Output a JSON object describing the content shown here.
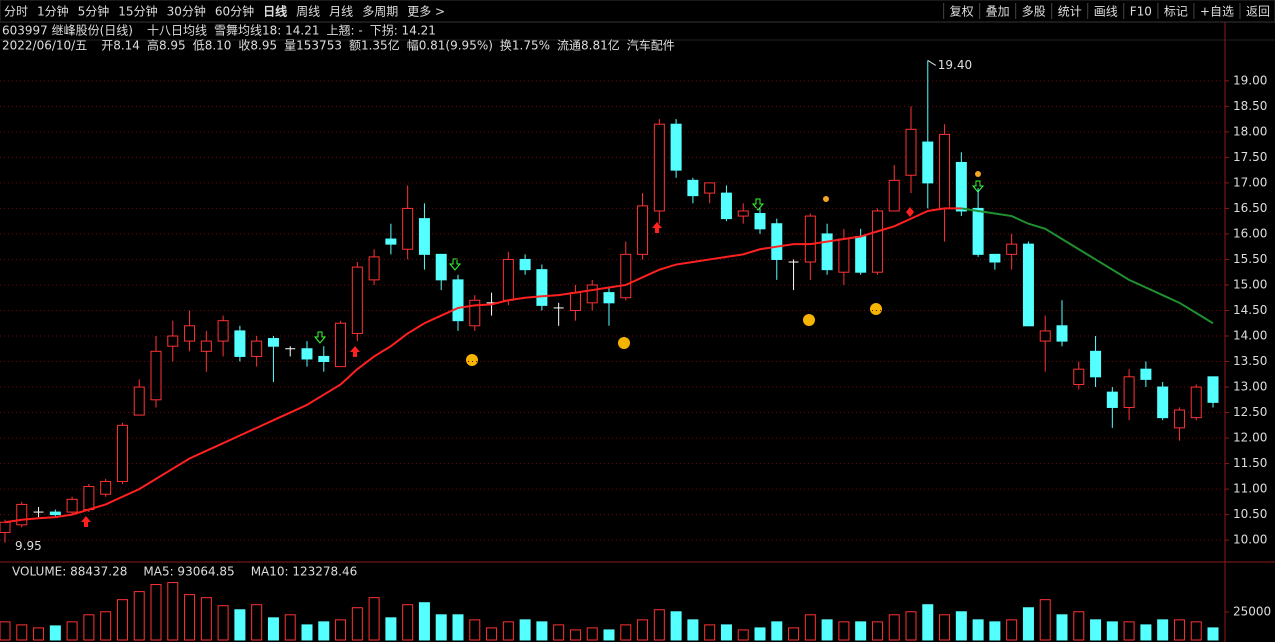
{
  "toolbar": {
    "periods": [
      "分时",
      "1分钟",
      "5分钟",
      "15分钟",
      "30分钟",
      "60分钟",
      "日线",
      "周线",
      "月线",
      "多周期",
      "更多 >"
    ],
    "active": 6,
    "tools": [
      "复权",
      "叠加",
      "多股",
      "统计",
      "画线",
      "F10",
      "标记",
      "+自选",
      "返回"
    ]
  },
  "info": {
    "stock": "603997 继峰股份(日线)",
    "indicator": "十八日均线",
    "ma_label": "雪舞均线18: 14.21",
    "up_label": "上翘: -",
    "down_label": "下拐: 14.21",
    "date": "2022/06/10/五",
    "open": "开8.14",
    "high": "高8.95",
    "low": "低8.10",
    "close": "收8.95",
    "volume": "量153753",
    "amount": "额1.35亿",
    "change": "幅0.81(9.95%)",
    "turnover": "换1.75%",
    "float": "流通8.81亿",
    "sector": "汽车配件"
  },
  "chart_data": {
    "type": "candlestick",
    "up_color": "#ff3232",
    "down_color": "#54ffff",
    "ylim": [
      9.65,
      19.8
    ],
    "yticks": [
      {
        "value": 10,
        "label": "10.00"
      },
      {
        "value": 10.5,
        "label": "10.50"
      },
      {
        "value": 11,
        "label": "11.00"
      },
      {
        "value": 11.5,
        "label": "11.50"
      },
      {
        "value": 12,
        "label": "12.00"
      },
      {
        "value": 12.5,
        "label": "12.50"
      },
      {
        "value": 13,
        "label": "13.00"
      },
      {
        "value": 13.5,
        "label": "13.50"
      },
      {
        "value": 14,
        "label": "14.00"
      },
      {
        "value": 14.5,
        "label": "14.50"
      },
      {
        "value": 15,
        "label": "15.00"
      },
      {
        "value": 15.5,
        "label": "15.50"
      },
      {
        "value": 16,
        "label": "16.00"
      },
      {
        "value": 16.5,
        "label": "16.50"
      },
      {
        "value": 17,
        "label": "17.00"
      },
      {
        "value": 17.5,
        "label": "17.50"
      },
      {
        "value": 18,
        "label": "18.00"
      },
      {
        "value": 18.5,
        "label": "18.50"
      },
      {
        "value": 19,
        "label": "19.00"
      }
    ],
    "grid": true,
    "open": [
      10.15,
      10.3,
      10.55,
      10.55,
      10.55,
      10.6,
      10.9,
      11.15,
      12.45,
      12.75,
      13.8,
      13.9,
      13.7,
      13.9,
      14.1,
      13.6,
      13.95,
      13.75,
      13.75,
      13.6,
      13.4,
      14.05,
      15.1,
      15.9,
      15.7,
      16.3,
      15.6,
      15.1,
      14.2,
      14.65,
      14.7,
      15.5,
      15.3,
      14.55,
      14.5,
      14.65,
      14.85,
      14.75,
      15.6,
      16.45,
      18.15,
      17.05,
      16.8,
      16.8,
      16.35,
      16.4,
      16.2,
      15.45,
      15.45,
      16.0,
      15.25,
      15.95,
      15.25,
      16.45,
      17.15,
      17.8,
      16.5,
      17.4,
      16.5,
      15.6,
      15.6,
      15.8,
      13.9,
      14.2,
      13.05,
      13.7,
      12.9,
      12.6,
      13.35,
      13.0,
      12.2,
      12.4,
      13.2
    ],
    "high": [
      10.4,
      10.75,
      10.65,
      10.6,
      10.85,
      11.1,
      11.2,
      12.3,
      13.15,
      14.0,
      14.3,
      14.5,
      14.1,
      14.4,
      14.2,
      14.0,
      14.0,
      13.8,
      13.9,
      13.8,
      14.3,
      15.45,
      15.7,
      16.2,
      16.95,
      16.6,
      15.6,
      15.2,
      14.8,
      14.85,
      15.65,
      15.6,
      15.4,
      14.65,
      15.0,
      15.1,
      14.95,
      15.85,
      16.8,
      18.25,
      18.25,
      17.1,
      17.0,
      16.95,
      16.6,
      16.5,
      16.3,
      15.5,
      16.4,
      16.2,
      16.1,
      16.1,
      16.5,
      17.35,
      18.5,
      19.4,
      18.15,
      17.6,
      16.9,
      15.6,
      16.0,
      15.85,
      14.4,
      14.7,
      13.5,
      14.0,
      13.0,
      13.35,
      13.5,
      13.1,
      12.6,
      13.05,
      13.2
    ],
    "low": [
      9.95,
      10.25,
      10.45,
      10.45,
      10.5,
      10.55,
      10.85,
      11.1,
      12.45,
      12.6,
      13.5,
      13.7,
      13.3,
      13.6,
      13.5,
      13.4,
      13.1,
      13.6,
      13.4,
      13.3,
      13.4,
      13.9,
      15.0,
      15.6,
      15.5,
      15.3,
      14.9,
      14.1,
      14.1,
      14.4,
      14.6,
      15.2,
      14.5,
      14.2,
      14.3,
      14.5,
      14.2,
      14.7,
      15.5,
      16.2,
      17.1,
      16.6,
      16.6,
      16.25,
      16.2,
      16.0,
      15.1,
      14.9,
      15.1,
      15.2,
      15.0,
      15.2,
      15.2,
      16.45,
      16.8,
      16.5,
      15.85,
      16.35,
      15.55,
      15.3,
      15.3,
      14.2,
      13.3,
      13.8,
      12.95,
      13.0,
      12.2,
      12.35,
      13.0,
      12.35,
      11.95,
      12.35,
      12.6
    ],
    "close": [
      10.35,
      10.7,
      10.55,
      10.5,
      10.8,
      11.05,
      11.15,
      12.25,
      13.0,
      13.7,
      14.0,
      14.2,
      13.9,
      14.3,
      13.6,
      13.9,
      13.8,
      13.75,
      13.55,
      13.5,
      14.25,
      15.35,
      15.55,
      15.8,
      16.5,
      15.6,
      15.1,
      14.3,
      14.7,
      14.65,
      15.5,
      15.3,
      14.6,
      14.55,
      14.85,
      15.0,
      14.65,
      15.6,
      16.55,
      18.15,
      17.25,
      16.75,
      17.0,
      16.3,
      16.45,
      16.1,
      15.5,
      15.45,
      16.35,
      15.3,
      15.9,
      15.25,
      16.45,
      17.05,
      18.05,
      17.0,
      17.95,
      16.45,
      15.6,
      15.45,
      15.8,
      14.2,
      14.1,
      13.9,
      13.35,
      13.2,
      12.6,
      13.2,
      13.15,
      12.4,
      12.55,
      13.0,
      12.7
    ],
    "ma_rising": {
      "color": "#ff2020",
      "values": [
        10.35,
        10.4,
        10.43,
        10.45,
        10.5,
        10.6,
        10.7,
        10.85,
        11.0,
        11.2,
        11.4,
        11.6,
        11.75,
        11.9,
        12.05,
        12.2,
        12.35,
        12.5,
        12.65,
        12.85,
        13.05,
        13.35,
        13.6,
        13.8,
        14.05,
        14.25,
        14.4,
        14.55,
        14.6,
        14.62,
        14.7,
        14.75,
        14.78,
        14.8,
        14.85,
        14.9,
        14.95,
        15.0,
        15.15,
        15.3,
        15.4,
        15.45,
        15.5,
        15.55,
        15.6,
        15.7,
        15.75,
        15.8,
        15.8,
        15.85,
        15.9,
        15.95,
        16.05,
        16.15,
        16.3,
        16.45,
        16.5,
        16.5,
        null,
        null,
        null,
        null,
        null,
        null,
        null,
        null,
        null,
        null,
        null,
        null,
        null,
        null,
        null
      ]
    },
    "ma_falling": {
      "color": "#1f8f2f",
      "values": [
        null,
        null,
        null,
        null,
        null,
        null,
        null,
        null,
        null,
        null,
        null,
        null,
        null,
        null,
        null,
        null,
        null,
        null,
        null,
        null,
        null,
        null,
        null,
        null,
        null,
        null,
        null,
        null,
        null,
        null,
        null,
        null,
        null,
        null,
        null,
        null,
        null,
        null,
        null,
        null,
        null,
        null,
        null,
        null,
        null,
        null,
        null,
        null,
        null,
        null,
        null,
        null,
        null,
        null,
        null,
        null,
        null,
        16.5,
        16.45,
        16.4,
        16.35,
        16.2,
        16.1,
        15.9,
        15.7,
        15.5,
        15.3,
        15.1,
        14.95,
        14.8,
        14.65,
        14.45,
        14.25
      ]
    },
    "max_label": "19.40",
    "min_label": "9.95",
    "volume": {
      "title": "VOLUME: 88437.28",
      "ma5": "MA5: 93064.85",
      "ma10": "MA10: 123278.46",
      "ylim": [
        0,
        50000
      ],
      "yticks": [
        25000
      ],
      "values": [
        16200,
        13500,
        10800,
        12600,
        16200,
        22500,
        25200,
        36000,
        43200,
        49500,
        51300,
        40500,
        37800,
        30600,
        27000,
        31500,
        19800,
        22500,
        13500,
        16200,
        18000,
        28800,
        37800,
        19800,
        31500,
        33300,
        22500,
        22500,
        18000,
        10800,
        16200,
        18000,
        16200,
        13500,
        9000,
        10800,
        9000,
        13500,
        18000,
        27000,
        25200,
        18000,
        13500,
        13500,
        9000,
        10800,
        16200,
        10800,
        22500,
        18000,
        16200,
        16200,
        16200,
        22500,
        25200,
        31500,
        22500,
        25200,
        18000,
        16200,
        18000,
        28800,
        36000,
        22500,
        25200,
        18000,
        16200,
        16200,
        13500,
        18000,
        18000,
        16200,
        10800
      ]
    }
  }
}
